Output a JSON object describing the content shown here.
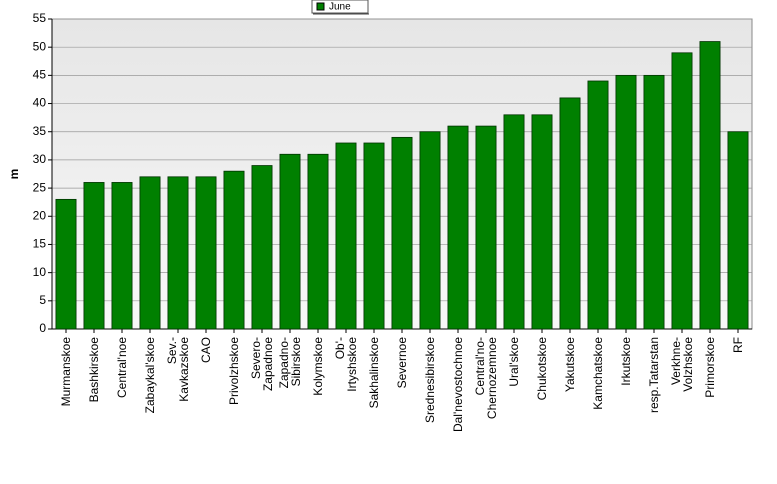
{
  "chart_data": {
    "type": "bar",
    "y_label": "m",
    "legend_title": "June",
    "series": [
      {
        "name": "June",
        "color": "#008000",
        "values": [
          23,
          26,
          26,
          27,
          27,
          27,
          28,
          29,
          31,
          31,
          33,
          33,
          34,
          35,
          36,
          36,
          38,
          38,
          41,
          44,
          45,
          45,
          49,
          51,
          35
        ]
      }
    ],
    "categories": [
      "Murmanskoe",
      "Bashkirskoe",
      "Central'noe",
      "Zabaykal'skoe",
      "Sev.-Kavkazskoe",
      "CAO",
      "Privolzhskoe",
      "Severo-Zapadnoe",
      "Zapadno-Sibirskoe",
      "Kolymskoe",
      "Ob'-Irtyshskoe",
      "Sakhalinskoe",
      "Severnoe",
      "Srednesibirskoe",
      "Dal'nevostochnoe",
      "Central'no-Chernozemnoe",
      "Ural'skoe",
      "Chukotskoe",
      "Yakutskoe",
      "Kamchatskoe",
      "Irkutskoe",
      "resp.Tatarstan",
      "Verkhne-Volzhskoe",
      "Primorskoe",
      "RF"
    ],
    "ylim": [
      0,
      55
    ],
    "yticks": [
      0,
      5,
      10,
      15,
      20,
      25,
      30,
      35,
      40,
      45,
      50,
      55
    ],
    "grid": true,
    "legend": "top"
  }
}
